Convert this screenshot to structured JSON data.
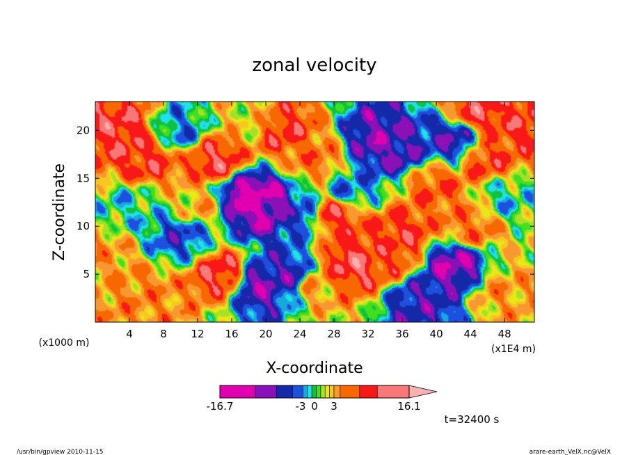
{
  "chart_data": {
    "type": "heatmap",
    "title": "zonal velocity",
    "xlabel": "X-coordinate",
    "ylabel": "Z-coordinate",
    "x_unit_note": "(x1E4 m)",
    "y_unit_note": "(x1000 m)",
    "xlim": [
      0,
      51.5
    ],
    "ylim": [
      0,
      23
    ],
    "xticks": [
      4,
      8,
      12,
      16,
      20,
      24,
      28,
      32,
      36,
      40,
      44,
      48
    ],
    "yticks": [
      5,
      10,
      15,
      20
    ],
    "grid": false,
    "colorbar": {
      "min": -16.7,
      "max": 16.1,
      "labels": [
        "-16.7",
        "-3",
        "0",
        "3",
        "16.1"
      ],
      "colors": [
        "#e000b0",
        "#8a10b8",
        "#1428a8",
        "#1e50e0",
        "#18a8e0",
        "#20e0e8",
        "#10c040",
        "#40e020",
        "#a8e028",
        "#e8e818",
        "#f8c820",
        "#f89830",
        "#f86800",
        "#f81818",
        "#f87878",
        "#f8b0b0"
      ]
    },
    "annotation": "t=32400 s",
    "field_samples": [
      {
        "x": 18,
        "y": 13,
        "v": -14.0
      },
      {
        "x": 20,
        "y": 12,
        "v": -12.0
      },
      {
        "x": 28,
        "y": 11,
        "v": 9.0
      },
      {
        "x": 34,
        "y": 7,
        "v": 8.0
      },
      {
        "x": 36,
        "y": 9,
        "v": 9.0
      },
      {
        "x": 42,
        "y": 6,
        "v": -11.0
      },
      {
        "x": 33,
        "y": 19,
        "v": -10.0
      },
      {
        "x": 35,
        "y": 18,
        "v": -9.0
      },
      {
        "x": 42,
        "y": 19,
        "v": -8.0
      },
      {
        "x": 46,
        "y": 17,
        "v": 8.0
      },
      {
        "x": 3,
        "y": 20,
        "v": 10.0
      },
      {
        "x": 6,
        "y": 17,
        "v": 9.0
      },
      {
        "x": 14,
        "y": 17,
        "v": 10.0
      },
      {
        "x": 22,
        "y": 20,
        "v": 9.0
      },
      {
        "x": 26,
        "y": 17,
        "v": 6.0
      },
      {
        "x": 30,
        "y": 14,
        "v": -4.0
      },
      {
        "x": 1,
        "y": 7,
        "v": 4.0
      },
      {
        "x": 6,
        "y": 3,
        "v": 5.0
      },
      {
        "x": 10,
        "y": 9,
        "v": -6.0
      },
      {
        "x": 15,
        "y": 5,
        "v": 10.0
      },
      {
        "x": 19,
        "y": 4,
        "v": -10.0
      },
      {
        "x": 23,
        "y": 5,
        "v": -8.0
      },
      {
        "x": 26,
        "y": 4,
        "v": 4.0
      },
      {
        "x": 30,
        "y": 6,
        "v": 11.0
      },
      {
        "x": 38,
        "y": 2,
        "v": -8.0
      },
      {
        "x": 44,
        "y": 10,
        "v": 6.0
      },
      {
        "x": 48,
        "y": 3,
        "v": 4.0
      },
      {
        "x": 50,
        "y": 21,
        "v": 9.0
      },
      {
        "x": 10,
        "y": 20,
        "v": -4.0
      },
      {
        "x": 18,
        "y": 21,
        "v": 2.0
      },
      {
        "x": 4,
        "y": 12,
        "v": -2.0
      },
      {
        "x": 24,
        "y": 11,
        "v": -6.0
      },
      {
        "x": 40,
        "y": 14,
        "v": 7.0
      },
      {
        "x": 48,
        "y": 13,
        "v": -2.0
      },
      {
        "x": 12,
        "y": 12,
        "v": 3.0
      },
      {
        "x": 45,
        "y": 22,
        "v": 10.0
      }
    ]
  },
  "footer": {
    "left": "/usr/bin/gpview  2010-11-15",
    "right": "arare-earth_VelX.nc@VelX"
  }
}
